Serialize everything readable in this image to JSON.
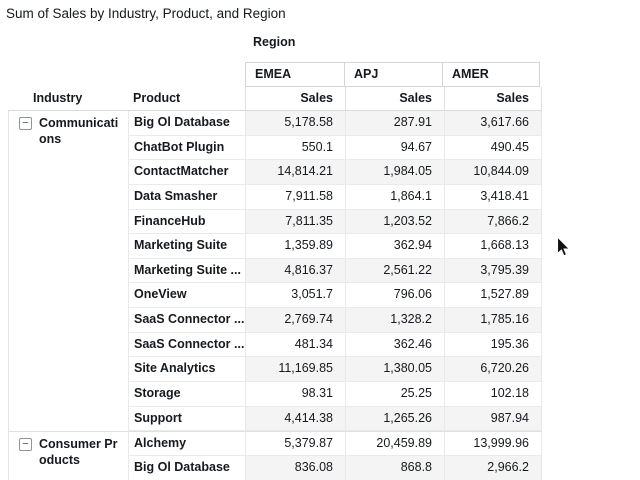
{
  "title": "Sum of Sales by Industry, Product, and Region",
  "table": {
    "region_label": "Region",
    "industry_header": "Industry",
    "product_header": "Product",
    "value_header": "Sales",
    "regions": [
      "EMEA",
      "APJ",
      "AMER"
    ],
    "groups": [
      {
        "industry": "Communications",
        "rows": [
          {
            "product": "Big Ol Database",
            "values": [
              "5,178.58",
              "287.91",
              "3,617.66"
            ]
          },
          {
            "product": "ChatBot Plugin",
            "values": [
              "550.1",
              "94.67",
              "490.45"
            ]
          },
          {
            "product": "ContactMatcher",
            "values": [
              "14,814.21",
              "1,984.05",
              "10,844.09"
            ]
          },
          {
            "product": "Data Smasher",
            "values": [
              "7,911.58",
              "1,864.1",
              "3,418.41"
            ]
          },
          {
            "product": "FinanceHub",
            "values": [
              "7,811.35",
              "1,203.52",
              "7,866.2"
            ]
          },
          {
            "product": "Marketing Suite",
            "values": [
              "1,359.89",
              "362.94",
              "1,668.13"
            ]
          },
          {
            "product": "Marketing Suite ...",
            "values": [
              "4,816.37",
              "2,561.22",
              "3,795.39"
            ]
          },
          {
            "product": "OneView",
            "values": [
              "3,051.7",
              "796.06",
              "1,527.89"
            ]
          },
          {
            "product": "SaaS Connector ...",
            "values": [
              "2,769.74",
              "1,328.2",
              "1,785.16"
            ]
          },
          {
            "product": "SaaS Connector ...",
            "values": [
              "481.34",
              "362.46",
              "195.36"
            ]
          },
          {
            "product": "Site Analytics",
            "values": [
              "11,169.85",
              "1,380.05",
              "6,720.26"
            ]
          },
          {
            "product": "Storage",
            "values": [
              "98.31",
              "25.25",
              "102.18"
            ]
          },
          {
            "product": "Support",
            "values": [
              "4,414.38",
              "1,265.26",
              "987.94"
            ]
          }
        ]
      },
      {
        "industry": "Consumer Products",
        "rows": [
          {
            "product": "Alchemy",
            "values": [
              "5,379.87",
              "20,459.89",
              "13,999.96"
            ]
          },
          {
            "product": "Big Ol Database",
            "values": [
              "836.08",
              "868.8",
              "2,966.2"
            ]
          }
        ]
      }
    ]
  },
  "icons": {
    "collapse_glyph": "−",
    "cursor": "arrow-cursor"
  },
  "colors": {
    "text": "#16191f",
    "stripe": "#f4f4f4",
    "row_border": "#ebebeb",
    "column_border": "#e9e9e9",
    "header_border": "#d6d6d6",
    "background": "#ffffff"
  }
}
